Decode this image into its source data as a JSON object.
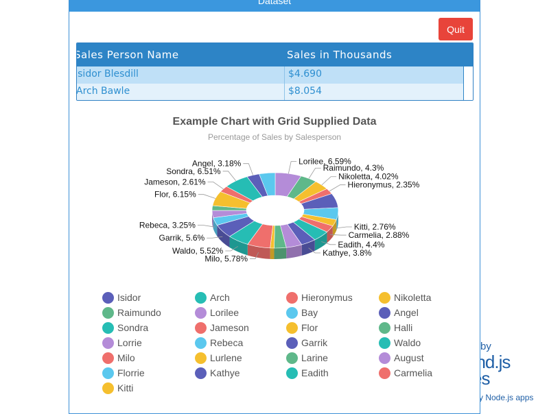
{
  "background": {
    "brand_by": "by",
    "brand_logo": "und.js",
    "brand_logo2": "es",
    "brand_sub": "y Node.js apps"
  },
  "dialog": {
    "title": "Dataset",
    "quit_label": "Quit"
  },
  "grid": {
    "columns": [
      "Sales Person Name",
      "Sales in Thousands"
    ],
    "rows": [
      {
        "name": "Isidor  Blesdill",
        "sales": "$4.690"
      },
      {
        "name": "Arch  Bawle",
        "sales": "$8.054"
      }
    ]
  },
  "chart_data": {
    "type": "pie",
    "title": "Example Chart with Grid Supplied Data",
    "subtitle": "Percentage of Sales by Salesperson",
    "slices": [
      {
        "name": "Lorilee",
        "value": 6.59,
        "label": "Lorilee, 6.59%",
        "color": "#b48cd8"
      },
      {
        "name": "Raimundo",
        "value": 4.3,
        "label": "Raimundo, 4.3%",
        "color": "#5fb88a"
      },
      {
        "name": "Nikoletta",
        "value": 4.02,
        "label": "Nikoletta, 4.02%",
        "color": "#f5bf2e"
      },
      {
        "name": "Hieronymus",
        "value": 2.35,
        "label": "Hieronymus, 2.35%",
        "color": "#ef6f6c"
      },
      {
        "name": "Angel",
        "value": 6.0,
        "label": "",
        "color": "#5b5fb9"
      },
      {
        "name": "Bay",
        "value": 5.0,
        "label": "",
        "color": "#5bc8ee"
      },
      {
        "name": "Kitti",
        "value": 2.76,
        "label": "Kitti, 2.76%",
        "color": "#f5bf2e"
      },
      {
        "name": "Carmelia",
        "value": 2.88,
        "label": "Carmelia, 2.88%",
        "color": "#ef6f6c"
      },
      {
        "name": "Eadith",
        "value": 4.4,
        "label": "Eadith, 4.4%",
        "color": "#26bdb4"
      },
      {
        "name": "Kathye",
        "value": 3.8,
        "label": "Kathye, 3.8%",
        "color": "#5b5fb9"
      },
      {
        "name": "August",
        "value": 4.0,
        "label": "",
        "color": "#b48cd8"
      },
      {
        "name": "Larine",
        "value": 3.0,
        "label": "",
        "color": "#5fb88a"
      },
      {
        "name": "Lurlene",
        "value": 1.0,
        "label": "",
        "color": "#f5bf2e"
      },
      {
        "name": "Milo",
        "value": 5.78,
        "label": "Milo, 5.78%",
        "color": "#ef6f6c"
      },
      {
        "name": "Waldo",
        "value": 5.52,
        "label": "Waldo, 5.52%",
        "color": "#26bdb4"
      },
      {
        "name": "Garrik",
        "value": 5.6,
        "label": "Garrik, 5.6%",
        "color": "#5b5fb9"
      },
      {
        "name": "Rebeca",
        "value": 3.25,
        "label": "Rebeca, 3.25%",
        "color": "#5bc8ee"
      },
      {
        "name": "Lorrie",
        "value": 3.0,
        "label": "",
        "color": "#b48cd8"
      },
      {
        "name": "Halli",
        "value": 2.0,
        "label": "",
        "color": "#5fb88a"
      },
      {
        "name": "Flor",
        "value": 6.15,
        "label": "Flor, 6.15%",
        "color": "#f5bf2e"
      },
      {
        "name": "Jameson",
        "value": 2.61,
        "label": "Jameson, 2.61%",
        "color": "#ef6f6c"
      },
      {
        "name": "Sondra",
        "value": 6.51,
        "label": "Sondra, 6.51%",
        "color": "#26bdb4"
      },
      {
        "name": "Angel",
        "value": 3.18,
        "label": "Angel, 3.18%",
        "color": "#5b5fb9"
      },
      {
        "name": "Bay",
        "value": 4.0,
        "label": "",
        "color": "#5bc8ee"
      }
    ],
    "legend": [
      {
        "name": "Isidor",
        "color": "#5b5fb9"
      },
      {
        "name": "Arch",
        "color": "#26bdb4"
      },
      {
        "name": "Hieronymus",
        "color": "#ef6f6c"
      },
      {
        "name": "Nikoletta",
        "color": "#f5bf2e"
      },
      {
        "name": "Raimundo",
        "color": "#5fb88a"
      },
      {
        "name": "Lorilee",
        "color": "#b48cd8"
      },
      {
        "name": "Bay",
        "color": "#5bc8ee"
      },
      {
        "name": "Angel",
        "color": "#5b5fb9"
      },
      {
        "name": "Sondra",
        "color": "#26bdb4"
      },
      {
        "name": "Jameson",
        "color": "#ef6f6c"
      },
      {
        "name": "Flor",
        "color": "#f5bf2e"
      },
      {
        "name": "Halli",
        "color": "#5fb88a"
      },
      {
        "name": "Lorrie",
        "color": "#b48cd8"
      },
      {
        "name": "Rebeca",
        "color": "#5bc8ee"
      },
      {
        "name": "Garrik",
        "color": "#5b5fb9"
      },
      {
        "name": "Waldo",
        "color": "#26bdb4"
      },
      {
        "name": "Milo",
        "color": "#ef6f6c"
      },
      {
        "name": "Lurlene",
        "color": "#f5bf2e"
      },
      {
        "name": "Larine",
        "color": "#5fb88a"
      },
      {
        "name": "August",
        "color": "#b48cd8"
      },
      {
        "name": "Florrie",
        "color": "#5bc8ee"
      },
      {
        "name": "Kathye",
        "color": "#5b5fb9"
      },
      {
        "name": "Eadith",
        "color": "#26bdb4"
      },
      {
        "name": "Carmelia",
        "color": "#ef6f6c"
      },
      {
        "name": "Kitti",
        "color": "#f5bf2e"
      }
    ],
    "legend_position": "bottom"
  }
}
